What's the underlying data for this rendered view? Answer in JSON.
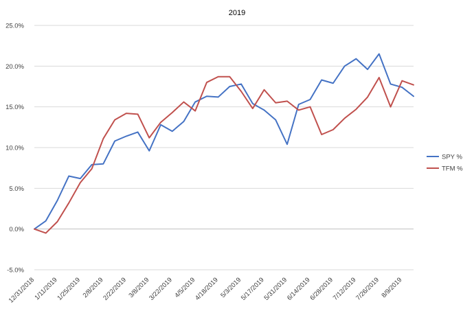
{
  "chart_data": {
    "type": "line",
    "title": "2019",
    "xlabel": "",
    "ylabel": "",
    "x": [
      "12/31/2018",
      "1/4/2019",
      "1/11/2019",
      "1/18/2019",
      "1/25/2019",
      "2/1/2019",
      "2/8/2019",
      "2/15/2019",
      "2/22/2019",
      "3/1/2019",
      "3/8/2019",
      "3/15/2019",
      "3/22/2019",
      "3/29/2019",
      "4/5/2019",
      "4/12/2019",
      "4/18/2019",
      "4/26/2019",
      "5/3/2019",
      "5/10/2019",
      "5/17/2019",
      "5/24/2019",
      "5/31/2019",
      "6/7/2019",
      "6/14/2019",
      "6/21/2019",
      "6/28/2019",
      "7/5/2019",
      "7/12/2019",
      "7/19/2019",
      "7/26/2019",
      "8/2/2019",
      "8/9/2019",
      "8/16/2019"
    ],
    "tick_labels": [
      "12/31/2018",
      "1/11/2019",
      "1/25/2019",
      "2/8/2019",
      "2/22/2019",
      "3/8/2019",
      "3/22/2019",
      "4/5/2019",
      "4/18/2019",
      "5/3/2019",
      "5/17/2019",
      "5/31/2019",
      "6/14/2019",
      "6/28/2019",
      "7/12/2019",
      "7/26/2019",
      "8/9/2019"
    ],
    "ylim": [
      -5,
      25
    ],
    "yticks": [
      -5,
      0,
      5,
      10,
      15,
      20,
      25
    ],
    "ytick_labels": [
      "-5.0%",
      "0.0%",
      "5.0%",
      "10.0%",
      "15.0%",
      "20.0%",
      "25.0%"
    ],
    "grid": true,
    "legend_position": "right",
    "series": [
      {
        "name": "SPY %",
        "color": "#4472c4",
        "values": [
          0.0,
          1.0,
          3.5,
          6.5,
          6.2,
          7.9,
          8.0,
          10.8,
          11.4,
          11.9,
          9.6,
          12.8,
          12.0,
          13.2,
          15.6,
          16.3,
          16.2,
          17.5,
          17.8,
          15.4,
          14.6,
          13.4,
          10.4,
          15.3,
          15.9,
          18.3,
          17.9,
          20.0,
          20.9,
          19.6,
          21.5,
          17.8,
          17.4,
          16.3
        ]
      },
      {
        "name": "TFM %",
        "color": "#c0504d",
        "values": [
          0.0,
          -0.5,
          0.9,
          3.2,
          5.7,
          7.4,
          11.1,
          13.4,
          14.2,
          14.1,
          11.2,
          13.1,
          14.3,
          15.6,
          14.5,
          18.0,
          18.7,
          18.7,
          16.9,
          14.8,
          17.1,
          15.5,
          15.7,
          14.6,
          15.0,
          11.6,
          12.2,
          13.6,
          14.7,
          16.2,
          18.6,
          15.0,
          18.2,
          17.7
        ]
      }
    ]
  }
}
